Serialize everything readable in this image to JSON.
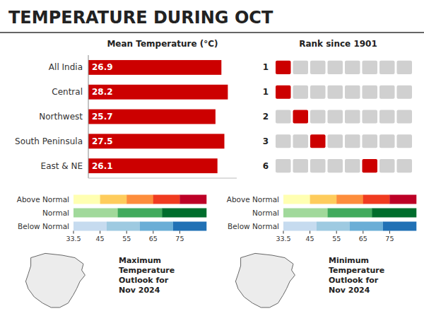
{
  "chart_data": [
    {
      "type": "bar",
      "orientation": "horizontal",
      "title": "TEMPERATURE DURING OCT",
      "xlabel": "Mean Temperature (°C)",
      "categories": [
        "All India",
        "Central",
        "Northwest",
        "South Peninsula",
        "East & NE"
      ],
      "values": [
        26.9,
        28.2,
        25.7,
        27.5,
        26.1
      ],
      "xlim": [
        0,
        30
      ],
      "color": "#cc0000",
      "data_labels": true,
      "tick_labels": "y"
    },
    {
      "type": "rank",
      "title": "Rank since 1901",
      "values": [
        1,
        1,
        2,
        3,
        6
      ],
      "xlim": [
        1,
        8
      ],
      "color": "#cc0000",
      "data_labels": true,
      "tick_labels": false
    },
    {
      "type": "colorbar",
      "title": "Maximum\nTemperature\nOutlook for\nNov 2024",
      "series": [
        {
          "name": "Above Normal",
          "colors": [
            "#ffffb2",
            "#fecc5c",
            "#fd8d3c",
            "#f03b20",
            "#bd0026"
          ]
        },
        {
          "name": "Normal",
          "colors": [
            "#a1d99b",
            "#41ab5d",
            "#006d2c"
          ]
        },
        {
          "name": "Below Normal",
          "colors": [
            "#c6dbef",
            "#9ecae1",
            "#6baed6",
            "#2171b5"
          ]
        }
      ],
      "xticks": [
        33.5,
        45,
        55,
        65,
        75
      ]
    },
    {
      "type": "colorbar",
      "title": "Minimum\nTemperature\nOutlook for\nNov 2024",
      "series": [
        {
          "name": "Above Normal",
          "colors": [
            "#ffffb2",
            "#fecc5c",
            "#fd8d3c",
            "#f03b20",
            "#bd0026"
          ]
        },
        {
          "name": "Normal",
          "colors": [
            "#a1d99b",
            "#41ab5d",
            "#006d2c"
          ]
        },
        {
          "name": "Below Normal",
          "colors": [
            "#c6dbef",
            "#9ecae1",
            "#6baed6",
            "#2171b5"
          ]
        }
      ],
      "xticks": [
        33.5,
        45,
        55,
        65,
        75
      ]
    }
  ]
}
